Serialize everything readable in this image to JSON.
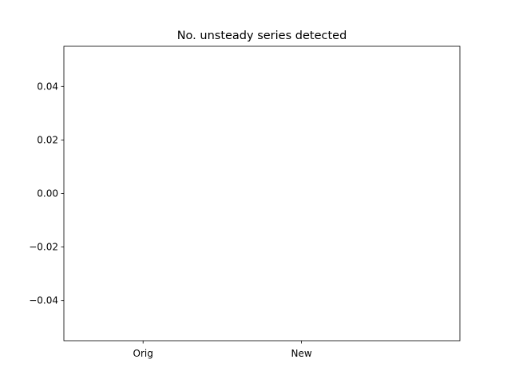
{
  "chart_data": {
    "type": "bar",
    "title": "No. unsteady series detected",
    "xlabel": "",
    "ylabel": "",
    "categories": [
      "Orig",
      "New"
    ],
    "values": [
      0,
      0
    ],
    "ylim": [
      -0.055,
      0.055
    ],
    "yticks": [
      0.04,
      0.02,
      0.0,
      -0.02,
      -0.04
    ],
    "ytick_labels": [
      "0.04",
      "0.02",
      "0.00",
      "−0.02",
      "−0.04"
    ],
    "grid": false,
    "legend": "none",
    "colors": {
      "axes": "#000000",
      "background": "#ffffff",
      "bar": "#1f77b4"
    }
  }
}
